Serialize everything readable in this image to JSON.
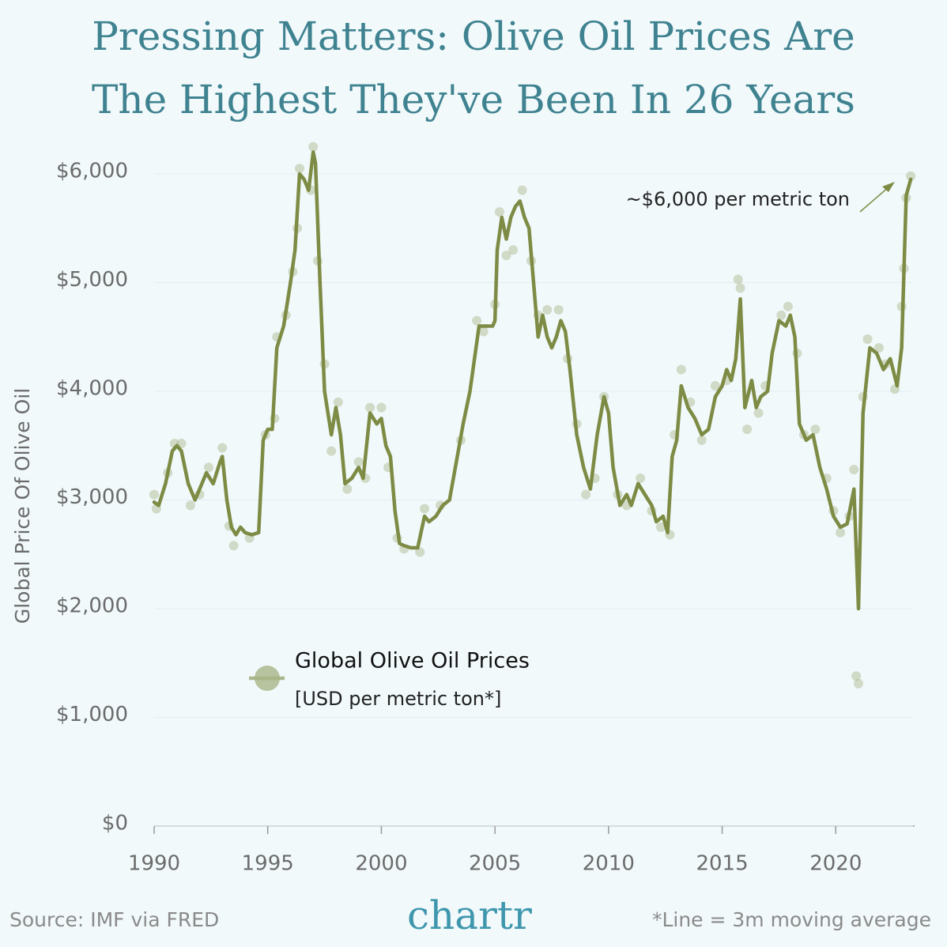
{
  "chart_data": {
    "type": "line",
    "title_lines": [
      "Pressing Matters: Olive Oil Prices Are",
      "The Highest They've Been In 26 Years"
    ],
    "y_axis_label": "Global Price Of Olive Oil",
    "annotation": "~$6,000 per metric ton",
    "source": "Source: IMF via FRED",
    "logo": "chartr",
    "footnote": "*Line = 3m moving average",
    "xlim": [
      1990,
      2023.4
    ],
    "ylim": [
      0,
      6300
    ],
    "xticks": [
      1990,
      1995,
      2000,
      2005,
      2010,
      2015,
      2020
    ],
    "yticks": [
      {
        "value": 0,
        "label": "$0"
      },
      {
        "value": 1000,
        "label": "$1,000"
      },
      {
        "value": 2000,
        "label": "$2,000"
      },
      {
        "value": 3000,
        "label": "$3,000"
      },
      {
        "value": 4000,
        "label": "$4,000"
      },
      {
        "value": 5000,
        "label": "$5,000"
      },
      {
        "value": 6000,
        "label": "$6,000"
      }
    ],
    "grid": true,
    "series": [
      {
        "name": "Global Olive Oil Prices",
        "unit_label": "[USD per metric ton*]",
        "color": "#7d8b44",
        "x": [
          1990.0,
          1990.2,
          1990.5,
          1990.8,
          1991.0,
          1991.2,
          1991.5,
          1991.8,
          1992.0,
          1992.3,
          1992.6,
          1992.9,
          1993.0,
          1993.2,
          1993.4,
          1993.6,
          1993.8,
          1994.0,
          1994.3,
          1994.6,
          1994.8,
          1995.0,
          1995.2,
          1995.4,
          1995.7,
          1996.0,
          1996.2,
          1996.4,
          1996.6,
          1996.8,
          1997.0,
          1997.1,
          1997.3,
          1997.5,
          1997.8,
          1998.0,
          1998.2,
          1998.4,
          1998.7,
          1999.0,
          1999.2,
          1999.5,
          1999.8,
          2000.0,
          2000.2,
          2000.4,
          2000.6,
          2000.8,
          2001.0,
          2001.3,
          2001.6,
          2001.9,
          2002.1,
          2002.4,
          2002.7,
          2003.0,
          2003.3,
          2003.6,
          2003.9,
          2004.1,
          2004.3,
          2004.6,
          2004.9,
          2005.0,
          2005.1,
          2005.3,
          2005.5,
          2005.7,
          2005.9,
          2006.1,
          2006.3,
          2006.5,
          2006.7,
          2006.9,
          2007.1,
          2007.3,
          2007.5,
          2007.7,
          2007.9,
          2008.1,
          2008.3,
          2008.6,
          2008.9,
          2009.2,
          2009.5,
          2009.8,
          2010.0,
          2010.2,
          2010.5,
          2010.8,
          2011.0,
          2011.3,
          2011.6,
          2011.9,
          2012.1,
          2012.4,
          2012.6,
          2012.8,
          2013.0,
          2013.2,
          2013.5,
          2013.8,
          2014.1,
          2014.4,
          2014.7,
          2015.0,
          2015.2,
          2015.4,
          2015.6,
          2015.8,
          2016.0,
          2016.3,
          2016.5,
          2016.7,
          2017.0,
          2017.2,
          2017.5,
          2017.8,
          2018.0,
          2018.2,
          2018.4,
          2018.7,
          2019.0,
          2019.3,
          2019.6,
          2019.9,
          2020.2,
          2020.5,
          2020.8,
          2021.0,
          2021.2,
          2021.5,
          2021.8,
          2022.1,
          2022.4,
          2022.7,
          2022.9,
          2023.1,
          2023.3
        ],
        "values": [
          2980,
          2950,
          3150,
          3450,
          3500,
          3450,
          3150,
          3000,
          3100,
          3250,
          3150,
          3350,
          3400,
          3000,
          2750,
          2680,
          2750,
          2700,
          2680,
          2700,
          3550,
          3650,
          3650,
          4400,
          4600,
          5000,
          5300,
          6000,
          5950,
          5850,
          6200,
          6100,
          5000,
          4000,
          3600,
          3850,
          3600,
          3150,
          3200,
          3300,
          3200,
          3800,
          3700,
          3750,
          3500,
          3400,
          2900,
          2600,
          2580,
          2560,
          2560,
          2850,
          2800,
          2850,
          2950,
          3000,
          3350,
          3700,
          4000,
          4300,
          4600,
          4600,
          4600,
          4650,
          5300,
          5600,
          5400,
          5600,
          5700,
          5750,
          5600,
          5500,
          5000,
          4500,
          4700,
          4500,
          4400,
          4500,
          4650,
          4550,
          4200,
          3600,
          3300,
          3100,
          3600,
          3950,
          3800,
          3300,
          2950,
          3050,
          2950,
          3150,
          3050,
          2950,
          2800,
          2850,
          2700,
          3400,
          3550,
          4050,
          3850,
          3750,
          3600,
          3650,
          3950,
          4050,
          4200,
          4100,
          4300,
          4850,
          3850,
          4100,
          3850,
          3950,
          4000,
          4350,
          4650,
          4600,
          4700,
          4500,
          3700,
          3550,
          3600,
          3300,
          3100,
          2850,
          2750,
          2780,
          3100,
          2000,
          3800,
          4400,
          4350,
          4200,
          4300,
          4050,
          4400,
          5800,
          5950
        ],
        "points": {
          "x": [
            1990.0,
            1990.1,
            1990.6,
            1990.9,
            1991.2,
            1991.6,
            1992.0,
            1992.4,
            1993.0,
            1993.3,
            1993.5,
            1994.2,
            1994.9,
            1995.3,
            1995.4,
            1995.8,
            1996.1,
            1996.3,
            1996.4,
            1996.9,
            1997.0,
            1997.2,
            1997.5,
            1997.8,
            1998.1,
            1998.5,
            1999.0,
            1999.3,
            1999.5,
            2000.0,
            2000.3,
            2000.7,
            2001.0,
            2001.7,
            2001.9,
            2002.6,
            2003.5,
            2004.2,
            2004.5,
            2005.0,
            2005.2,
            2005.5,
            2005.8,
            2006.2,
            2006.6,
            2006.9,
            2007.3,
            2007.8,
            2008.2,
            2008.6,
            2009.0,
            2009.4,
            2009.8,
            2010.4,
            2010.8,
            2011.4,
            2011.9,
            2012.3,
            2012.7,
            2012.9,
            2013.2,
            2013.6,
            2014.1,
            2014.7,
            2015.2,
            2015.7,
            2015.8,
            2016.1,
            2016.6,
            2016.9,
            2017.6,
            2017.9,
            2018.3,
            2018.6,
            2019.1,
            2019.6,
            2019.9,
            2020.2,
            2020.6,
            2020.8,
            2020.9,
            2021.0,
            2021.2,
            2021.4,
            2021.9,
            2022.2,
            2022.6,
            2022.9,
            2023.0,
            2023.1,
            2023.3
          ],
          "values": [
            3050,
            2920,
            3250,
            3520,
            3520,
            2950,
            3050,
            3300,
            3480,
            2760,
            2580,
            2650,
            3600,
            3750,
            4500,
            4700,
            5100,
            5500,
            6050,
            5850,
            6250,
            5200,
            4250,
            3450,
            3900,
            3100,
            3350,
            3200,
            3850,
            3850,
            3300,
            2650,
            2550,
            2520,
            2920,
            2950,
            3550,
            4650,
            4550,
            4800,
            5650,
            5250,
            5300,
            5850,
            5200,
            4700,
            4750,
            4750,
            4300,
            3700,
            3050,
            3200,
            3950,
            3050,
            2950,
            3200,
            2900,
            2750,
            2680,
            3600,
            4200,
            3900,
            3550,
            4050,
            4100,
            5030,
            4950,
            3650,
            3800,
            4050,
            4700,
            4780,
            4350,
            3600,
            3650,
            3200,
            2900,
            2700,
            2850,
            3280,
            1380,
            1310,
            3950,
            4480,
            4400,
            4250,
            4020,
            4780,
            5130,
            5780,
            5980
          ]
        }
      }
    ]
  }
}
